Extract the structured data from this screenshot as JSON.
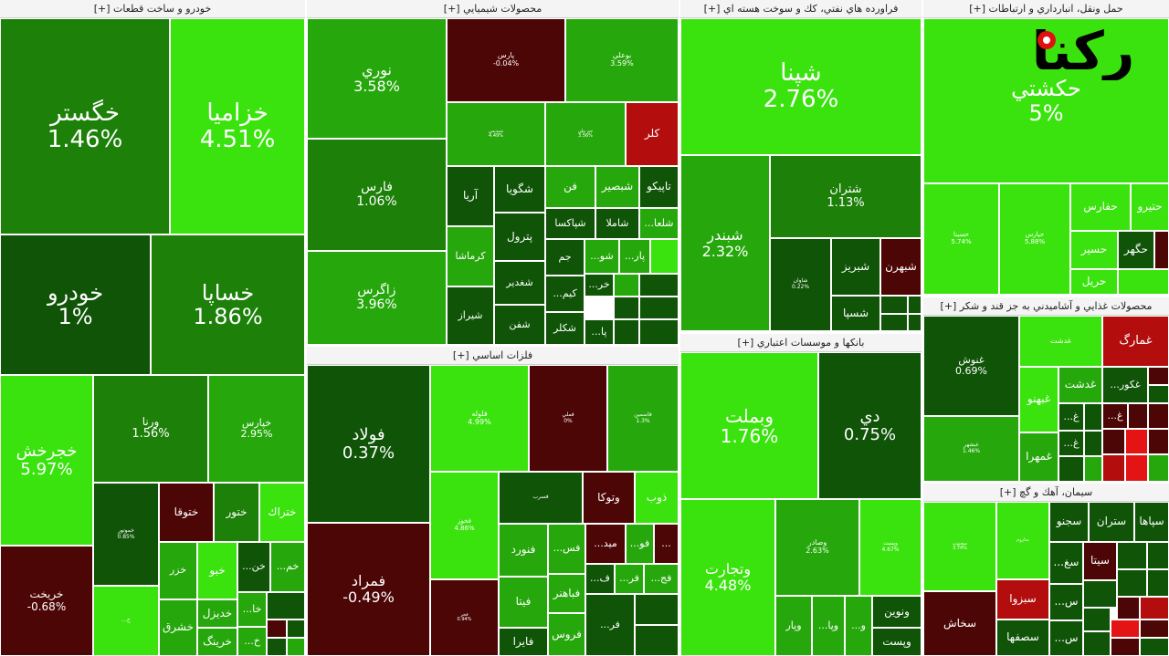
{
  "colors": {
    "bright_green": "#3be30e",
    "green": "#26a80c",
    "mid_green": "#1c8009",
    "dark_green": "#0f5407",
    "dark_red": "#4d0606",
    "red": "#b30d0d",
    "bright_red": "#e51414",
    "gray": "#333333"
  },
  "logo_text": "رکنا",
  "sectors": [
    {
      "title": "خودرو و ساخت قطعات [+]"
    },
    {
      "title": "محصولات شيميايي [+]"
    },
    {
      "title": "فراورده هاي نفتي، كك و سوخت هسته اي [+]"
    },
    {
      "title": "حمل ونقل، انبارداري و ارتباطات [+]"
    },
    {
      "title": "فلزات اساسي [+]"
    },
    {
      "title": "بانكها و موسسات اعتباري [+]"
    },
    {
      "title": "محصولات غذايي و آشاميدني به جز قند و شكر [+]"
    },
    {
      "title": "سيمان، آهك و گچ [+]"
    }
  ],
  "tiles": [
    {
      "name": "خگستر",
      "pct": "1.46%"
    },
    {
      "name": "خزاميا",
      "pct": "4.51%"
    },
    {
      "name": "خودرو",
      "pct": "1%"
    },
    {
      "name": "خساپا",
      "pct": "1.86%"
    },
    {
      "name": "خجرخش",
      "pct": "5.97%"
    },
    {
      "name": "ورنا",
      "pct": "1.56%"
    },
    {
      "name": "خپارس",
      "pct": "2.95%"
    },
    {
      "name": "خموتور",
      "pct": "0.85%"
    },
    {
      "name": "ختوقا",
      "pct": ""
    },
    {
      "name": "ختور",
      "pct": ""
    },
    {
      "name": "ختراك",
      "pct": ""
    },
    {
      "name": "خريخت",
      "pct": "-0.68%"
    },
    {
      "name": "خزر",
      "pct": ""
    },
    {
      "name": "خبو",
      "pct": ""
    },
    {
      "name": "خن...",
      "pct": ""
    },
    {
      "name": "خم...",
      "pct": ""
    },
    {
      "name": "خديزل",
      "pct": ""
    },
    {
      "name": "خا...",
      "pct": ""
    },
    {
      "name": "خشرق",
      "pct": ""
    },
    {
      "name": "خرينگ",
      "pct": ""
    },
    {
      "name": "خ...",
      "pct": ""
    },
    {
      "name": "خ...",
      "pct": ""
    },
    {
      "name": "نوري",
      "pct": "3.58%"
    },
    {
      "name": "پارس",
      "pct": "-0.04%"
    },
    {
      "name": "بوعلي",
      "pct": "3.59%"
    },
    {
      "name": "فارس",
      "pct": "1.06%"
    },
    {
      "name": "شپديس",
      "pct": "4.49%"
    },
    {
      "name": "جم پيلن",
      "pct": "3.56%"
    },
    {
      "name": "كلر",
      "pct": ""
    },
    {
      "name": "تاپيكو",
      "pct": ""
    },
    {
      "name": "شبصير",
      "pct": ""
    },
    {
      "name": "فن",
      "pct": ""
    },
    {
      "name": "شگويا",
      "pct": ""
    },
    {
      "name": "آريا",
      "pct": ""
    },
    {
      "name": "زاگرس",
      "pct": "3.96%"
    },
    {
      "name": "شاملا",
      "pct": ""
    },
    {
      "name": "شپاكسا",
      "pct": ""
    },
    {
      "name": "شلعا...",
      "pct": ""
    },
    {
      "name": "كرماشا",
      "pct": ""
    },
    {
      "name": "پترول",
      "pct": ""
    },
    {
      "name": "جم",
      "pct": ""
    },
    {
      "name": "شو...",
      "pct": ""
    },
    {
      "name": "پار...",
      "pct": ""
    },
    {
      "name": "شغدير",
      "pct": ""
    },
    {
      "name": "كيم...",
      "pct": ""
    },
    {
      "name": "خر...",
      "pct": ""
    },
    {
      "name": "شيراز",
      "pct": ""
    },
    {
      "name": "شفن",
      "pct": ""
    },
    {
      "name": "شكلر",
      "pct": ""
    },
    {
      "name": "پا...",
      "pct": ""
    },
    {
      "name": "شپنا",
      "pct": "2.76%"
    },
    {
      "name": "شبندر",
      "pct": "2.32%"
    },
    {
      "name": "شتران",
      "pct": "1.13%"
    },
    {
      "name": "شاوان",
      "pct": "0.22%"
    },
    {
      "name": "شبريز",
      "pct": ""
    },
    {
      "name": "شبهرن",
      "pct": ""
    },
    {
      "name": "شسپا",
      "pct": ""
    },
    {
      "name": "حكشتي",
      "pct": "5%"
    },
    {
      "name": "حسينا",
      "pct": "5.74%"
    },
    {
      "name": "حپارس",
      "pct": "5.88%"
    },
    {
      "name": "حفارس",
      "pct": ""
    },
    {
      "name": "حتيرو",
      "pct": ""
    },
    {
      "name": "حسير",
      "pct": ""
    },
    {
      "name": "حگهر",
      "pct": ""
    },
    {
      "name": "حريل",
      "pct": ""
    },
    {
      "name": "فولاد",
      "pct": "0.37%"
    },
    {
      "name": "فلوله",
      "pct": "4.99%"
    },
    {
      "name": "فملي",
      "pct": "0%"
    },
    {
      "name": "فاسمين",
      "pct": "1.3%"
    },
    {
      "name": "فمراد",
      "pct": "-0.49%"
    },
    {
      "name": "فخوز",
      "pct": "4.86%"
    },
    {
      "name": "فسرب",
      "pct": ""
    },
    {
      "name": "وتوكا",
      "pct": ""
    },
    {
      "name": "ذوب",
      "pct": ""
    },
    {
      "name": "فنورد",
      "pct": ""
    },
    {
      "name": "فس...",
      "pct": ""
    },
    {
      "name": "ميد...",
      "pct": ""
    },
    {
      "name": "فو...",
      "pct": ""
    },
    {
      "name": "...",
      "pct": ""
    },
    {
      "name": "فيتا",
      "pct": ""
    },
    {
      "name": "ف...",
      "pct": ""
    },
    {
      "name": "فر...",
      "pct": ""
    },
    {
      "name": "فج...",
      "pct": ""
    },
    {
      "name": "فباهنر",
      "pct": ""
    },
    {
      "name": "فجر",
      "pct": "0.94%"
    },
    {
      "name": "فايرا",
      "pct": ""
    },
    {
      "name": "فروس",
      "pct": ""
    },
    {
      "name": "فر...",
      "pct": ""
    },
    {
      "name": "وبملت",
      "pct": "1.76%"
    },
    {
      "name": "دي",
      "pct": "0.75%"
    },
    {
      "name": "وتجارت",
      "pct": "4.48%"
    },
    {
      "name": "وصادر",
      "pct": "2.63%"
    },
    {
      "name": "وپست",
      "pct": "4.67%"
    },
    {
      "name": "ونوين",
      "pct": ""
    },
    {
      "name": "وپست",
      "pct": ""
    },
    {
      "name": "وپار",
      "pct": ""
    },
    {
      "name": "وپا...",
      "pct": ""
    },
    {
      "name": "و...",
      "pct": ""
    },
    {
      "name": "غنوش",
      "pct": "0.69%"
    },
    {
      "name": "غدشت",
      "pct": ""
    },
    {
      "name": "غمارگ",
      "pct": ""
    },
    {
      "name": "غبهنو",
      "pct": ""
    },
    {
      "name": "غكور...",
      "pct": ""
    },
    {
      "name": "غدشت",
      "pct": ""
    },
    {
      "name": "غبشهر",
      "pct": "1.46%"
    },
    {
      "name": "غمهرا",
      "pct": ""
    },
    {
      "name": "غ...",
      "pct": ""
    },
    {
      "name": "غ...",
      "pct": ""
    },
    {
      "name": "غ...",
      "pct": ""
    },
    {
      "name": "سجنوب",
      "pct": "3.74%"
    },
    {
      "name": "ساروم",
      "pct": ""
    },
    {
      "name": "سجنو",
      "pct": ""
    },
    {
      "name": "ستران",
      "pct": ""
    },
    {
      "name": "سپاها",
      "pct": ""
    },
    {
      "name": "سبزوا",
      "pct": ""
    },
    {
      "name": "سغ...",
      "pct": ""
    },
    {
      "name": "سيتا",
      "pct": ""
    },
    {
      "name": "سخاش",
      "pct": ""
    },
    {
      "name": "سصفها",
      "pct": ""
    },
    {
      "name": "س...",
      "pct": ""
    },
    {
      "name": "س...",
      "pct": ""
    }
  ]
}
